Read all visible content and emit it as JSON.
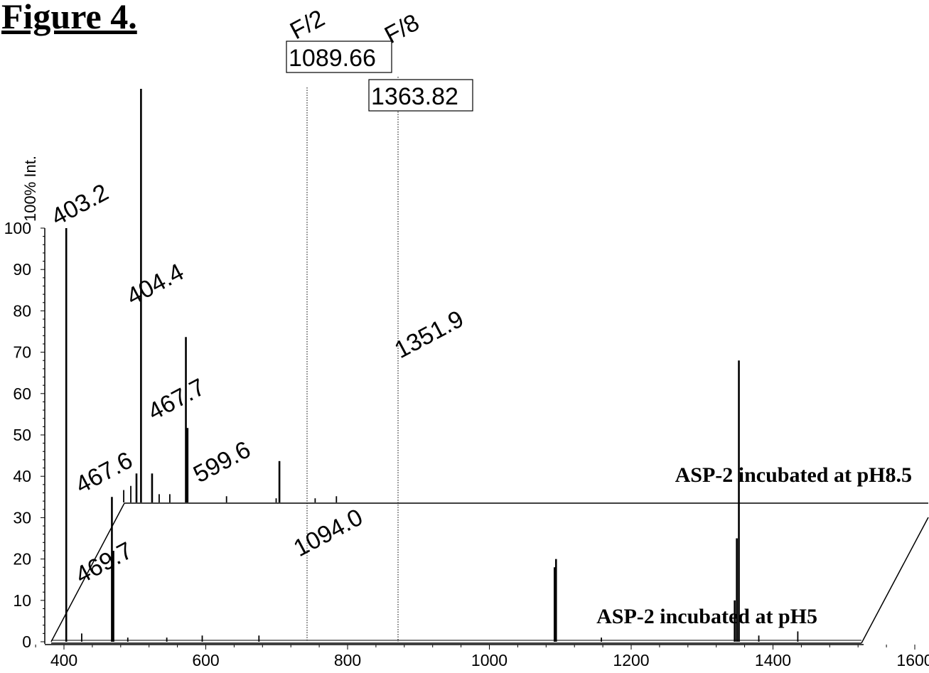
{
  "figure_title": "Figure 4.",
  "chart_data": {
    "type": "line",
    "title": "",
    "ylabel": "100% Int.",
    "xlabel": "",
    "xlim": [
      350,
      2650
    ],
    "ylim": [
      0,
      100
    ],
    "x_ticks": [
      400,
      600,
      800,
      1000,
      1200,
      1400,
      1600,
      1800,
      2000,
      2200,
      2400,
      2600
    ],
    "y_ticks": [
      0,
      10,
      20,
      30,
      40,
      50,
      60,
      70,
      80,
      90,
      100
    ],
    "series": [
      {
        "name": "ASP-2 incubated at pH5",
        "peaks": [
          {
            "x": 403.2,
            "y": 100
          },
          {
            "x": 425,
            "y": 2
          },
          {
            "x": 467.6,
            "y": 35
          },
          {
            "x": 469.7,
            "y": 22
          },
          {
            "x": 490,
            "y": 1
          },
          {
            "x": 545,
            "y": 1
          },
          {
            "x": 595,
            "y": 1.5
          },
          {
            "x": 675,
            "y": 1.5
          },
          {
            "x": 1092,
            "y": 18
          },
          {
            "x": 1094.0,
            "y": 20
          },
          {
            "x": 1158,
            "y": 1
          },
          {
            "x": 1346,
            "y": 10
          },
          {
            "x": 1349,
            "y": 25
          },
          {
            "x": 1351.9,
            "y": 68
          },
          {
            "x": 1380,
            "y": 1.5
          },
          {
            "x": 1435,
            "y": 2.5
          }
        ]
      },
      {
        "name": "ASP-2 incubated at pH8.5",
        "peaks": [
          {
            "x": 404.4,
            "y": 100
          },
          {
            "x": 380,
            "y": 3
          },
          {
            "x": 390,
            "y": 4
          },
          {
            "x": 398,
            "y": 7
          },
          {
            "x": 420,
            "y": 7
          },
          {
            "x": 430,
            "y": 2
          },
          {
            "x": 445,
            "y": 2
          },
          {
            "x": 467.7,
            "y": 40
          },
          {
            "x": 470,
            "y": 18
          },
          {
            "x": 525,
            "y": 1.5
          },
          {
            "x": 595,
            "y": 1
          },
          {
            "x": 599.6,
            "y": 10
          },
          {
            "x": 650,
            "y": 1
          },
          {
            "x": 680,
            "y": 1.5
          }
        ]
      }
    ],
    "peak_labels": [
      {
        "series": "ASP-2 incubated at pH5",
        "x": 403.2,
        "text": "403.2"
      },
      {
        "series": "ASP-2 incubated at pH5",
        "x": 467.6,
        "text": "467.6"
      },
      {
        "series": "ASP-2 incubated at pH5",
        "x": 469.7,
        "text": "469.7"
      },
      {
        "series": "ASP-2 incubated at pH5",
        "x": 1094.0,
        "text": "1094.0"
      },
      {
        "series": "ASP-2 incubated at pH5",
        "x": 1351.9,
        "text": "1351.9"
      },
      {
        "series": "ASP-2 incubated at pH8.5",
        "x": 404.4,
        "text": "404.4"
      },
      {
        "series": "ASP-2 incubated at pH8.5",
        "x": 467.7,
        "text": "467.7"
      },
      {
        "series": "ASP-2 incubated at pH8.5",
        "x": 599.6,
        "text": "599.6"
      }
    ],
    "reference_markers": [
      {
        "x": 1089.66,
        "value_text": "1089.66",
        "fragment_text": "F/2"
      },
      {
        "x": 1363.82,
        "value_text": "1363.82",
        "fragment_text": "F/8"
      }
    ],
    "grid": false,
    "legend": "none; trace labels at right of each trace"
  }
}
